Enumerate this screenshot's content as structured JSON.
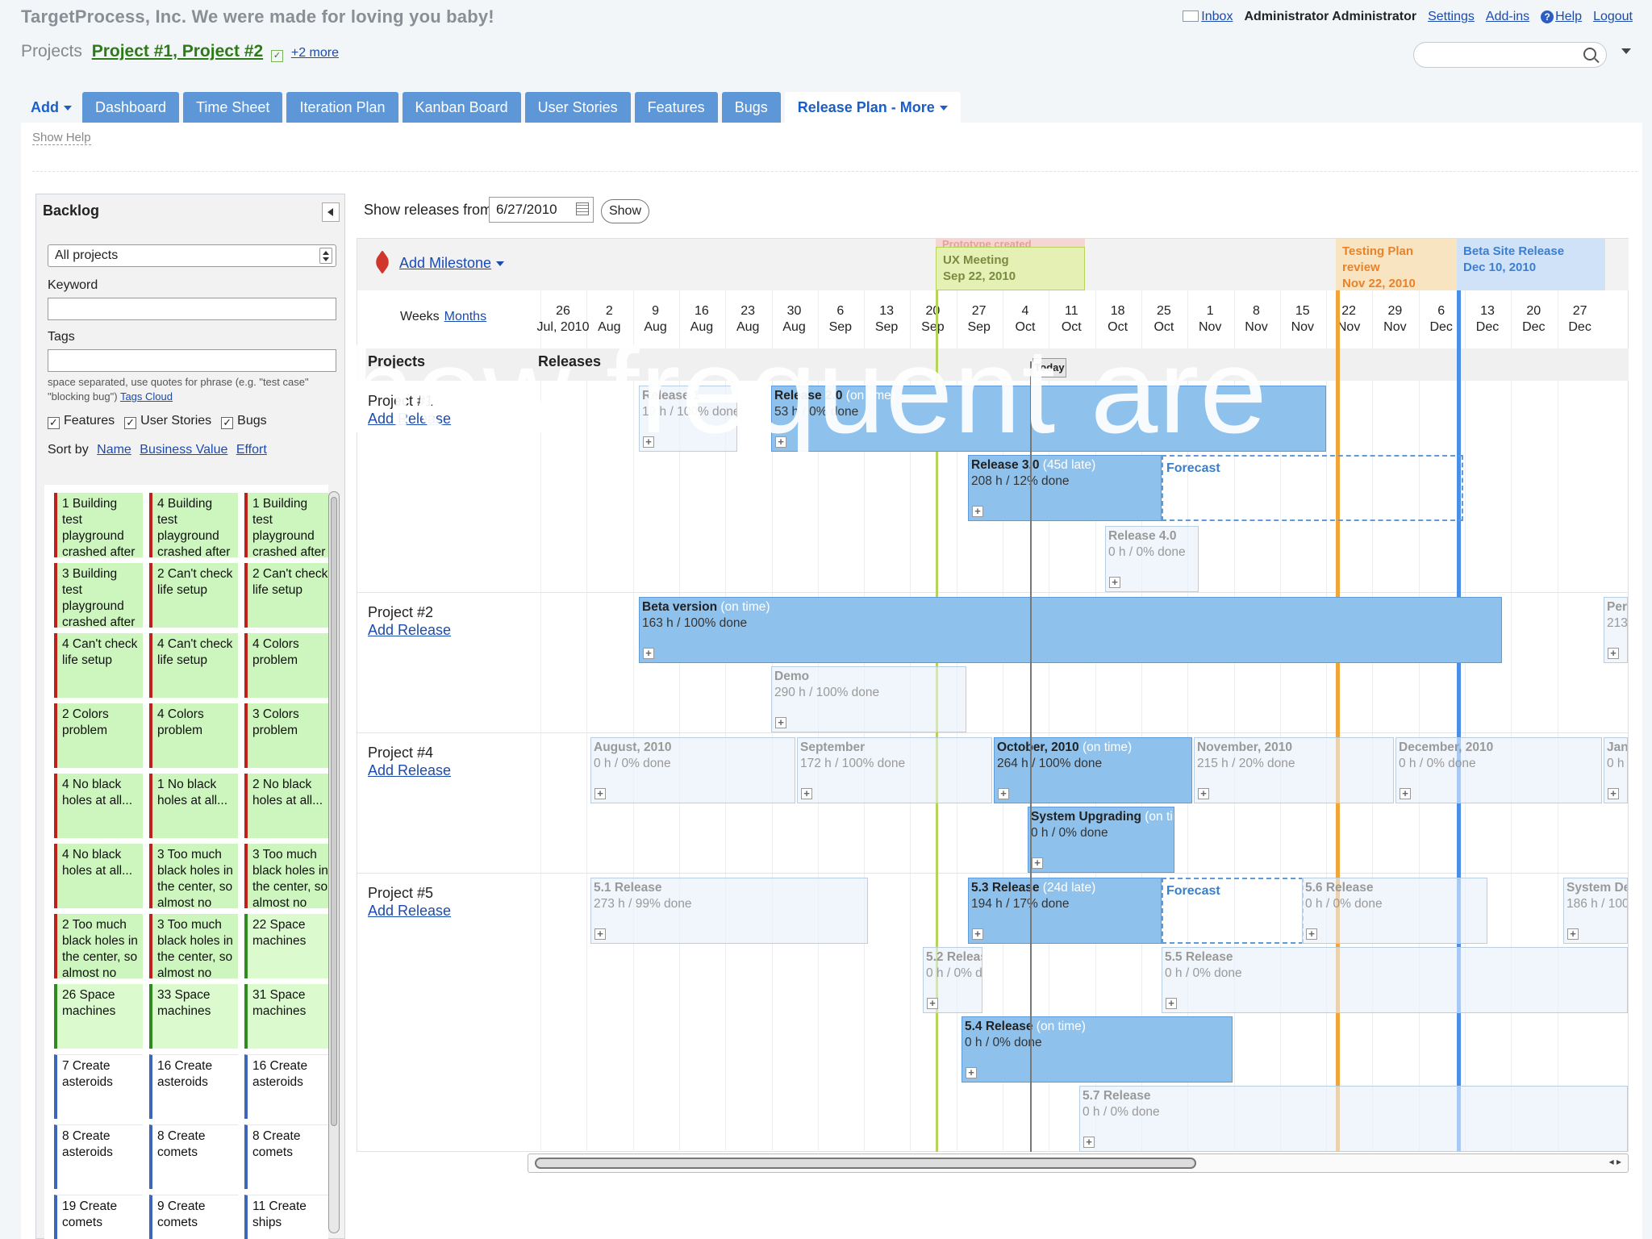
{
  "header": {
    "company": "TargetProcess, Inc. We were made for loving you baby!",
    "projects_label": "Projects",
    "projects_selected": "Project #1, Project #2",
    "more_link": "+2 more",
    "links": {
      "inbox": "Inbox",
      "user": "Administrator Administrator",
      "settings": "Settings",
      "addins": "Add-ins",
      "help": "Help",
      "logout": "Logout"
    },
    "search": {
      "placeholder": ""
    }
  },
  "tabs": [
    {
      "label": "Add"
    },
    {
      "label": "Dashboard"
    },
    {
      "label": "Time Sheet"
    },
    {
      "label": "Iteration Plan"
    },
    {
      "label": "Kanban Board"
    },
    {
      "label": "User Stories"
    },
    {
      "label": "Features"
    },
    {
      "label": "Bugs"
    },
    {
      "label": "Release Plan - More"
    }
  ],
  "show_help": "Show Help",
  "backlog": {
    "title": "Backlog",
    "project_filter": "All projects",
    "keyword_label": "Keyword",
    "keyword_value": "",
    "tags_label": "Tags",
    "tags_value": "",
    "tags_hint": "space separated, use quotes for phrase (e.g. \"test case\" \"blocking bug\")",
    "tags_cloud": "Tags Cloud",
    "filters": [
      {
        "label": "Features",
        "checked": true
      },
      {
        "label": "User Stories",
        "checked": true
      },
      {
        "label": "Bugs",
        "checked": true
      }
    ],
    "sort_by": "Sort by",
    "sort_options": [
      "Name",
      "Business Value",
      "Effort"
    ],
    "cards": [
      {
        "text": "1 Building test playground crashed after",
        "kind": "bug"
      },
      {
        "text": "4 Building test playground crashed after",
        "kind": "bug"
      },
      {
        "text": "1 Building test playground crashed after",
        "kind": "bug"
      },
      {
        "text": "3 Building test playground crashed after",
        "kind": "bug"
      },
      {
        "text": "2 Can't check life setup",
        "kind": "bug"
      },
      {
        "text": "2 Can't check life setup",
        "kind": "bug"
      },
      {
        "text": "4 Can't check life setup",
        "kind": "bug"
      },
      {
        "text": "4 Can't check life setup",
        "kind": "bug"
      },
      {
        "text": "4 Colors problem",
        "kind": "bug"
      },
      {
        "text": "2 Colors problem",
        "kind": "bug"
      },
      {
        "text": "4 Colors problem",
        "kind": "bug"
      },
      {
        "text": "3 Colors problem",
        "kind": "bug"
      },
      {
        "text": "4 No black holes at all...",
        "kind": "bug"
      },
      {
        "text": "1 No black holes at all...",
        "kind": "bug"
      },
      {
        "text": "2 No black holes at all...",
        "kind": "bug"
      },
      {
        "text": "4 No black holes at all...",
        "kind": "bug"
      },
      {
        "text": "3 Too much black holes in the center, so almost no",
        "kind": "bug"
      },
      {
        "text": "3 Too much black holes in the center, so almost no",
        "kind": "bug"
      },
      {
        "text": "2 Too much black holes in the center, so almost no",
        "kind": "bug"
      },
      {
        "text": "3 Too much black holes in the center, so almost no",
        "kind": "bug"
      },
      {
        "text": "22 Space machines",
        "kind": "feature"
      },
      {
        "text": "26 Space machines",
        "kind": "feature"
      },
      {
        "text": "33 Space machines",
        "kind": "feature"
      },
      {
        "text": "31 Space machines",
        "kind": "feature"
      },
      {
        "text": "7 Create asteroids",
        "kind": "story"
      },
      {
        "text": "16 Create asteroids",
        "kind": "story"
      },
      {
        "text": "16 Create asteroids",
        "kind": "story"
      },
      {
        "text": "8 Create asteroids",
        "kind": "story"
      },
      {
        "text": "8 Create comets",
        "kind": "story"
      },
      {
        "text": "8 Create comets",
        "kind": "story"
      },
      {
        "text": "19 Create comets",
        "kind": "story"
      },
      {
        "text": "9 Create comets",
        "kind": "story"
      },
      {
        "text": "11 Create ships",
        "kind": "story"
      }
    ]
  },
  "timeline": {
    "show_from_label": "Show releases from",
    "show_from_date": "6/27/2010",
    "show_button": "Show",
    "add_milestone": "Add Milestone",
    "weeks_label": "Weeks",
    "months_link": "Months",
    "weeks": [
      {
        "d": "26",
        "m": "Jul, 2010"
      },
      {
        "d": "2",
        "m": "Aug"
      },
      {
        "d": "9",
        "m": "Aug"
      },
      {
        "d": "16",
        "m": "Aug"
      },
      {
        "d": "23",
        "m": "Aug"
      },
      {
        "d": "30",
        "m": "Aug"
      },
      {
        "d": "6",
        "m": "Sep"
      },
      {
        "d": "13",
        "m": "Sep"
      },
      {
        "d": "20",
        "m": "Sep"
      },
      {
        "d": "27",
        "m": "Sep"
      },
      {
        "d": "4",
        "m": "Oct"
      },
      {
        "d": "11",
        "m": "Oct"
      },
      {
        "d": "18",
        "m": "Oct"
      },
      {
        "d": "25",
        "m": "Oct"
      },
      {
        "d": "1",
        "m": "Nov"
      },
      {
        "d": "8",
        "m": "Nov"
      },
      {
        "d": "15",
        "m": "Nov"
      },
      {
        "d": "22",
        "m": "Nov"
      },
      {
        "d": "29",
        "m": "Nov"
      },
      {
        "d": "6",
        "m": "Dec"
      },
      {
        "d": "13",
        "m": "Dec"
      },
      {
        "d": "20",
        "m": "Dec"
      },
      {
        "d": "27",
        "m": "Dec"
      }
    ],
    "col_projects": "Projects",
    "col_releases": "Releases",
    "today": "Today",
    "milestones": [
      {
        "title": "Prototype created",
        "date": "",
        "color": "#f6d6d2"
      },
      {
        "title": "UX Meeting",
        "date": "Sep 22, 2010",
        "color": "#e4f0b4"
      },
      {
        "title": "Testing Plan review",
        "date": "Nov 22, 2010",
        "color": "#f9e4c2"
      },
      {
        "title": "Beta Site Release",
        "date": "Dec 10, 2010",
        "color": "#cfe2f8"
      }
    ],
    "projects": [
      {
        "name": "Project #1",
        "add": "Add Release"
      },
      {
        "name": "Project #2",
        "add": "Add Release"
      },
      {
        "name": "Project #4",
        "add": "Add Release"
      },
      {
        "name": "Project #5",
        "add": "Add Release"
      }
    ],
    "releases": {
      "r1": {
        "name": "Release 1",
        "status": "",
        "stats": "19 h / 100% done"
      },
      "r2": {
        "name": "Release 2.0",
        "status": "(on time)",
        "stats": "53 h / 0% done"
      },
      "r3": {
        "name": "Release 3.0",
        "status": "(45d late)",
        "stats": "208 h / 12% done"
      },
      "r4": {
        "name": "Release 4.0",
        "status": "",
        "stats": "0 h / 0% done"
      },
      "beta": {
        "name": "Beta version",
        "status": "(on time)",
        "stats": "163 h / 100% done"
      },
      "demo": {
        "name": "Demo",
        "status": "",
        "stats": "290 h / 100% done"
      },
      "perf": {
        "name": "Perf",
        "status": "",
        "stats": "213"
      },
      "aug": {
        "name": "August, 2010",
        "status": "",
        "stats": "0 h / 0% done"
      },
      "sep": {
        "name": "September",
        "status": "",
        "stats": "172 h / 100% done"
      },
      "oct": {
        "name": "October, 2010",
        "status": "(on time)",
        "stats": "264 h / 100% done"
      },
      "nov": {
        "name": "November, 2010",
        "status": "",
        "stats": "215 h / 20% done"
      },
      "dec": {
        "name": "December, 2010",
        "status": "",
        "stats": "0 h / 0% done"
      },
      "jan": {
        "name": "Jan",
        "status": "",
        "stats": "0 h /"
      },
      "sysup": {
        "name": "System Upgrading",
        "status": "(on time)",
        "stats": "0 h / 0% done"
      },
      "r51": {
        "name": "5.1 Release",
        "status": "",
        "stats": "273 h / 99% done"
      },
      "r53": {
        "name": "5.3 Release",
        "status": "(24d late)",
        "stats": "194 h / 17% done"
      },
      "r56": {
        "name": "5.6 Release",
        "status": "",
        "stats": "0 h / 0% done"
      },
      "sysdep": {
        "name": "System Dep",
        "status": "",
        "stats": "186 h / 100%"
      },
      "r52": {
        "name": "5.2 Release",
        "status": "",
        "stats": "0 h / 0% d"
      },
      "r55": {
        "name": "5.5 Release",
        "status": "",
        "stats": "0 h / 0% done"
      },
      "r54": {
        "name": "5.4 Release",
        "status": "(on time)",
        "stats": "0 h / 0% done"
      },
      "r57": {
        "name": "5.7 Release",
        "status": "",
        "stats": "0 h / 0% done"
      }
    },
    "forecast": "Forecast"
  },
  "overlay": {
    "text": "how frequent are"
  }
}
